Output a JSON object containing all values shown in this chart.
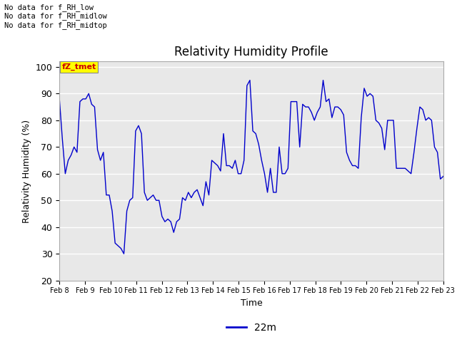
{
  "title": "Relativity Humidity Profile",
  "xlabel": "Time",
  "ylabel": "Relativity Humidity (%)",
  "ylim": [
    20,
    102
  ],
  "yticks": [
    20,
    30,
    40,
    50,
    60,
    70,
    80,
    90,
    100
  ],
  "line_color": "#0000cc",
  "line_label": "22m",
  "legend_line_color": "#0000cc",
  "fig_bg_color": "#ffffff",
  "plot_bg_color": "#e8e8e8",
  "annotations": [
    "No data for f_RH_low",
    "No data for f_RH_midlow",
    "No data for f_RH_midtop"
  ],
  "legend_label_box": "fZ_tmet",
  "legend_label_box_color": "#ffff00",
  "legend_label_box_text_color": "#cc0000",
  "xtick_labels": [
    "Feb 8",
    "Feb 9",
    "Feb 10",
    "Feb 11",
    "Feb 12",
    "Feb 13",
    "Feb 14",
    "Feb 15",
    "Feb 16",
    "Feb 17",
    "Feb 18",
    "Feb 19",
    "Feb 20",
    "Feb 21",
    "Feb 22",
    "Feb 23"
  ],
  "rh_values": [
    88,
    73,
    60,
    65,
    67,
    70,
    68,
    87,
    88,
    88,
    90,
    86,
    85,
    69,
    65,
    68,
    52,
    52,
    46,
    34,
    33,
    32,
    30,
    46,
    50,
    51,
    76,
    78,
    75,
    53,
    50,
    51,
    52,
    50,
    50,
    44,
    42,
    43,
    42,
    38,
    42,
    43,
    51,
    50,
    53,
    51,
    53,
    54,
    51,
    48,
    57,
    52,
    65,
    64,
    63,
    61,
    75,
    63,
    63,
    62,
    65,
    60,
    60,
    65,
    93,
    95,
    76,
    75,
    71,
    65,
    60,
    53,
    62,
    53,
    53,
    70,
    60,
    60,
    62,
    87,
    87,
    87,
    70,
    86,
    85,
    85,
    83,
    80,
    83,
    85,
    95,
    87,
    88,
    81,
    85,
    85,
    84,
    82,
    68,
    65,
    63,
    63,
    62,
    81,
    92,
    89,
    90,
    89,
    80,
    79,
    77,
    69,
    80,
    80,
    80,
    62,
    62,
    62,
    62,
    61,
    60,
    68,
    77,
    85,
    84,
    80,
    81,
    80,
    70,
    68,
    58,
    59
  ]
}
